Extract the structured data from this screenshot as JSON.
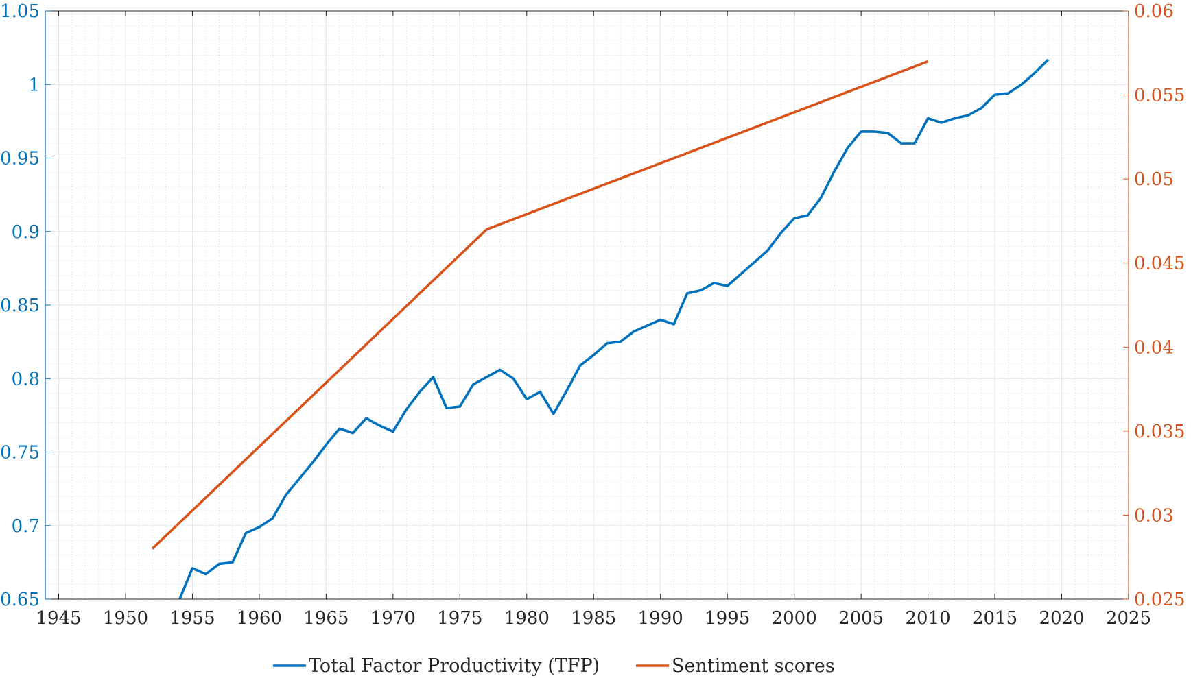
{
  "chart_data": {
    "type": "line",
    "title": "",
    "xlabel": "",
    "ylabel_left": "",
    "ylabel_right": "",
    "xlim": [
      1944,
      2025
    ],
    "ylim_left": [
      0.65,
      1.05
    ],
    "ylim_right": [
      0.025,
      0.06
    ],
    "x_ticks": [
      1945,
      1950,
      1955,
      1960,
      1965,
      1970,
      1975,
      1980,
      1985,
      1990,
      1995,
      2000,
      2005,
      2010,
      2015,
      2020,
      2025
    ],
    "y_left_ticks": [
      0.65,
      0.7,
      0.75,
      0.8,
      0.85,
      0.9,
      0.95,
      1,
      1.05
    ],
    "y_left_tick_labels": [
      "0.65",
      "0.7",
      "0.75",
      "0.8",
      "0.85",
      "0.9",
      "0.95",
      "1",
      "1.05"
    ],
    "y_right_ticks": [
      0.025,
      0.03,
      0.035,
      0.04,
      0.045,
      0.05,
      0.055,
      0.06
    ],
    "y_right_tick_labels": [
      "0.025",
      "0.03",
      "0.035",
      "0.04",
      "0.045",
      "0.05",
      "0.055",
      "0.06"
    ],
    "grid": true,
    "minor_grid": true,
    "legend_position": "bottom-center",
    "colors": {
      "left_axis": "#0072BD",
      "right_axis": "#D95319",
      "grid": "#dfe6ec",
      "frame": "#262626"
    },
    "series": [
      {
        "name": "Total Factor Productivity (TFP)",
        "axis": "left",
        "color": "#0072BD",
        "x": [
          1953,
          1954,
          1955,
          1956,
          1957,
          1958,
          1959,
          1960,
          1961,
          1962,
          1963,
          1964,
          1965,
          1966,
          1967,
          1968,
          1969,
          1970,
          1971,
          1972,
          1973,
          1974,
          1975,
          1976,
          1977,
          1978,
          1979,
          1980,
          1981,
          1982,
          1983,
          1984,
          1985,
          1986,
          1987,
          1988,
          1989,
          1990,
          1991,
          1992,
          1993,
          1994,
          1995,
          1996,
          1997,
          1998,
          1999,
          2000,
          2001,
          2002,
          2003,
          2004,
          2005,
          2006,
          2007,
          2008,
          2009,
          2010,
          2011,
          2012,
          2013,
          2014,
          2015,
          2016,
          2017,
          2018,
          2019
        ],
        "values": [
          0.628,
          0.649,
          0.671,
          0.667,
          0.674,
          0.675,
          0.695,
          0.699,
          0.705,
          0.721,
          0.732,
          0.743,
          0.755,
          0.766,
          0.763,
          0.773,
          0.768,
          0.764,
          0.779,
          0.791,
          0.801,
          0.78,
          0.781,
          0.796,
          0.801,
          0.806,
          0.8,
          0.786,
          0.791,
          0.776,
          0.792,
          0.809,
          0.816,
          0.824,
          0.825,
          0.832,
          0.836,
          0.84,
          0.837,
          0.858,
          0.86,
          0.865,
          0.863,
          0.871,
          0.879,
          0.887,
          0.899,
          0.909,
          0.911,
          0.923,
          0.941,
          0.957,
          0.968,
          0.968,
          0.967,
          0.96,
          0.96,
          0.977,
          0.974,
          0.977,
          0.979,
          0.984,
          0.993,
          0.994,
          1.0,
          1.008,
          1.017
        ]
      },
      {
        "name": "Sentiment scores",
        "axis": "right",
        "color": "#D95319",
        "x": [
          1952,
          1977,
          2010
        ],
        "values": [
          0.028,
          0.047,
          0.057
        ]
      }
    ]
  }
}
